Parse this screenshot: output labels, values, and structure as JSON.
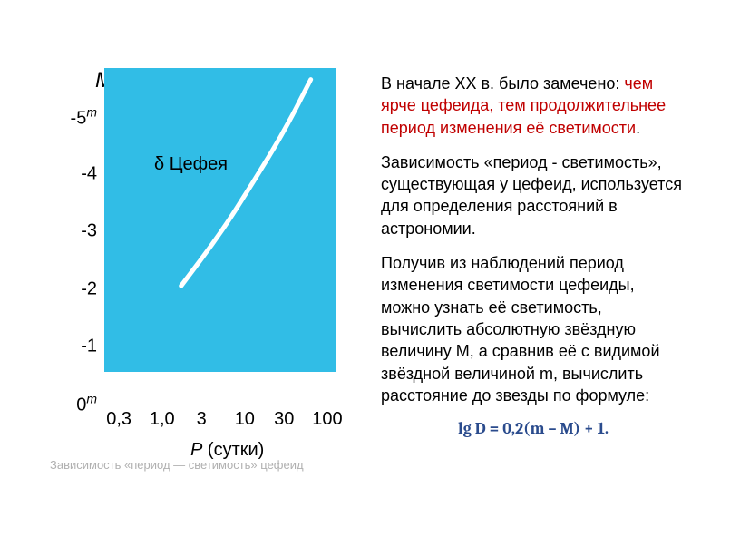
{
  "chart": {
    "type": "line",
    "axis_title": "M",
    "plot_label": "δ Цефея",
    "background_color": "#31bde6",
    "curve_color": "#ffffff",
    "curve_width": 5,
    "y_ticks": [
      {
        "html": "-5<sup><i>m</i></sup>",
        "value": -5
      },
      {
        "html": "-4",
        "value": -4
      },
      {
        "html": "-3",
        "value": -3
      },
      {
        "html": "-2",
        "value": -2
      },
      {
        "html": "-1",
        "value": -1
      },
      {
        "html": "0<sup><i>m</i></sup>",
        "value": 0
      }
    ],
    "y_range": {
      "min": 0,
      "max": -5.3
    },
    "x_scale": "log",
    "x_ticks": [
      {
        "label": "0,3",
        "log": -0.523
      },
      {
        "label": "1,0",
        "log": 0
      },
      {
        "label": "3",
        "log": 0.477
      },
      {
        "label": "10",
        "log": 1
      },
      {
        "label": "30",
        "log": 1.477
      },
      {
        "label": "100",
        "log": 2
      }
    ],
    "x_range_log": {
      "min": -0.7,
      "max": 2.1
    },
    "x_label_var": "P",
    "x_label_unit": "(сутки)",
    "curve_points": [
      {
        "logP": 0.23,
        "M": -1.5
      },
      {
        "logP": 0.7,
        "M": -2.4
      },
      {
        "logP": 1.1,
        "M": -3.3
      },
      {
        "logP": 1.48,
        "M": -4.2
      },
      {
        "logP": 1.8,
        "M": -5.1
      }
    ]
  },
  "caption": "Зависимость «период — светимость» цефеид",
  "text": {
    "p1_pre": "В начале XX в. было замечено: ",
    "p1_hl": "чем ярче цефеида, тем продолжительнее период изменения её светимости",
    "p1_post": ".",
    "p2": "Зависимость «период - светимость», существующая у цефеид, используется для определения расстояний в астрономии.",
    "p3": "Получив из наблюдений период изменения светимости цефеиды, можно узнать её светимость, вычислить абсолютную звёздную величину M, а сравнив её с видимой звёздной величиной m, вычислить расстояние до звезды по формуле:",
    "formula": "lg D = 0,2(m – M) + 1."
  },
  "colors": {
    "highlight": "#c00000",
    "formula": "#2a4b8d",
    "caption": "#b0b0b0"
  }
}
